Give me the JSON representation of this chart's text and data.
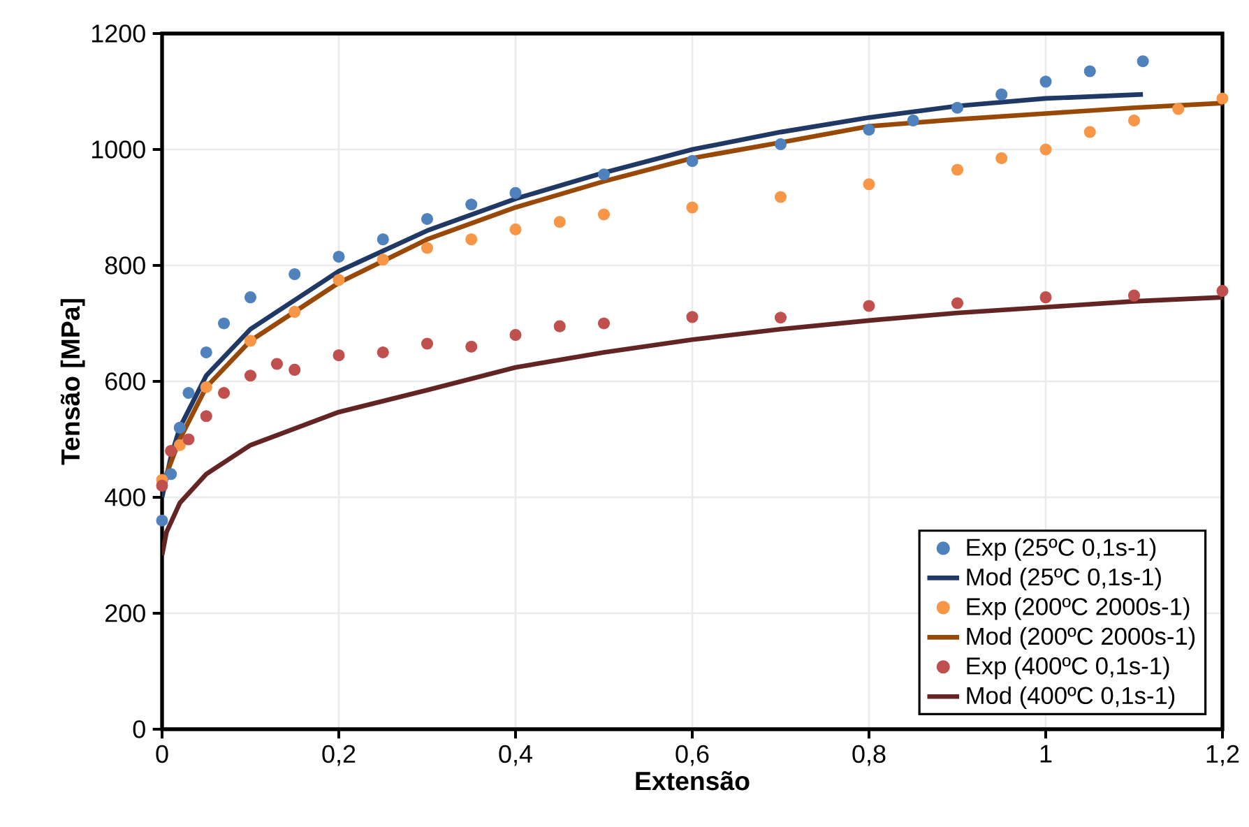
{
  "chart_data": {
    "type": "scatter",
    "xlabel": "Extensão",
    "ylabel": "Tensão [MPa]",
    "xlim": [
      0,
      1.2
    ],
    "ylim": [
      0,
      1200
    ],
    "xticks": [
      0,
      {
        "value": 0.2,
        "label": "0,2"
      },
      {
        "value": 0.4,
        "label": "0,4"
      },
      {
        "value": 0.6,
        "label": "0,6"
      },
      {
        "value": 0.8,
        "label": "0,8"
      },
      1,
      {
        "value": 1.2,
        "label": "1,2"
      }
    ],
    "yticks": [
      0,
      200,
      400,
      600,
      800,
      1000,
      1200
    ],
    "grid": true,
    "legend": "bottom right",
    "series": [
      {
        "name": "Exp (25ºC 0,1s-1)",
        "color": "#4f81bd",
        "x": [
          0,
          0.01,
          0.02,
          0.03,
          0.05,
          0.07,
          0.1,
          0.15,
          0.2,
          0.25,
          0.3,
          0.35,
          0.4,
          0.5,
          0.6,
          0.7,
          0.8,
          0.85,
          0.9,
          0.95,
          1.0,
          1.05,
          1.11
        ],
        "values": [
          360,
          440,
          520,
          580,
          650,
          700,
          745,
          785,
          815,
          845,
          880,
          905,
          925,
          957,
          980,
          1009,
          1034,
          1050,
          1072,
          1095,
          1117,
          1135,
          1152
        ]
      },
      {
        "name": "Mod (25ºC 0,1s-1)",
        "type": "line",
        "color": "#1f3864",
        "x": [
          0,
          0.01,
          0.02,
          0.05,
          0.1,
          0.2,
          0.3,
          0.4,
          0.5,
          0.6,
          0.7,
          0.8,
          0.9,
          1.0,
          1.11
        ],
        "values": [
          400,
          470,
          520,
          610,
          690,
          790,
          860,
          915,
          960,
          1000,
          1030,
          1055,
          1075,
          1088,
          1095
        ]
      },
      {
        "name": "Exp (200ºC 2000s-1)",
        "color": "#f79646",
        "x": [
          0,
          0.02,
          0.05,
          0.1,
          0.15,
          0.2,
          0.25,
          0.3,
          0.35,
          0.4,
          0.45,
          0.5,
          0.6,
          0.7,
          0.8,
          0.9,
          0.95,
          1.0,
          1.05,
          1.1,
          1.15,
          1.2
        ],
        "values": [
          430,
          490,
          590,
          670,
          720,
          775,
          810,
          830,
          845,
          862,
          875,
          888,
          900,
          918,
          940,
          965,
          985,
          1000,
          1030,
          1050,
          1070,
          1088
        ]
      },
      {
        "name": "Mod (200ºC 2000s-1)",
        "type": "line",
        "color": "#984807",
        "x": [
          0,
          0.02,
          0.05,
          0.1,
          0.2,
          0.3,
          0.4,
          0.5,
          0.6,
          0.7,
          0.8,
          0.9,
          1.0,
          1.1,
          1.2
        ],
        "values": [
          420,
          500,
          590,
          670,
          770,
          845,
          900,
          945,
          985,
          1012,
          1040,
          1052,
          1062,
          1072,
          1080
        ]
      },
      {
        "name": "Exp (400ºC 0,1s-1)",
        "color": "#c0504d",
        "x": [
          0,
          0.01,
          0.03,
          0.05,
          0.07,
          0.1,
          0.13,
          0.15,
          0.2,
          0.25,
          0.3,
          0.35,
          0.4,
          0.45,
          0.5,
          0.6,
          0.7,
          0.8,
          0.9,
          1.0,
          1.1,
          1.2
        ],
        "values": [
          420,
          480,
          500,
          540,
          580,
          610,
          630,
          620,
          645,
          650,
          665,
          660,
          680,
          695,
          700,
          711,
          710,
          730,
          735,
          745,
          748,
          756
        ]
      },
      {
        "name": "Mod (400ºC 0,1s-1)",
        "type": "line",
        "color": "#632523",
        "x": [
          0,
          0.005,
          0.02,
          0.05,
          0.1,
          0.2,
          0.3,
          0.4,
          0.5,
          0.6,
          0.7,
          0.8,
          0.9,
          1.0,
          1.1,
          1.2
        ],
        "values": [
          300,
          340,
          390,
          440,
          490,
          547,
          585,
          624,
          650,
          672,
          690,
          705,
          718,
          728,
          738,
          745
        ]
      }
    ]
  }
}
